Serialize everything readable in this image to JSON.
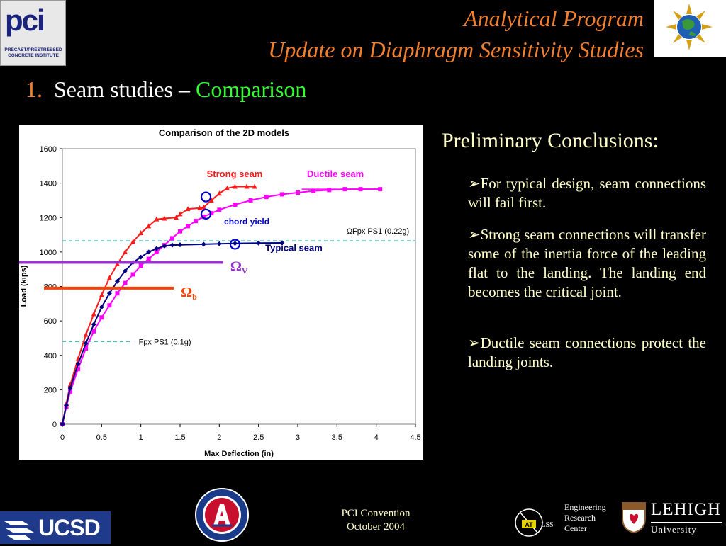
{
  "header": {
    "title_line1": "Analytical Program",
    "title_line2": "Update on Diaphragm Sensitivity Studies",
    "section_number": "1.",
    "section_title": "Seam studies –",
    "section_highlight": "Comparison"
  },
  "logos": {
    "pci_main": "pci",
    "pci_subtitle": "PRECAST/PRESTRESSED CONCRETE INSTITUTE",
    "ucsd": "UCSD",
    "atlss": "ATLSS",
    "erc_lines": [
      "Engineering",
      "Research",
      "Center"
    ],
    "lehigh_name": "LEHIGH",
    "lehigh_sub": "University"
  },
  "conclusions": {
    "title": "Preliminary Conclusions:",
    "bullets": [
      "For typical design, seam connections will fail first.",
      "Strong seam connections will transfer some of the inertia force of the leading flat to the landing. The landing end becomes the critical joint.",
      "Ductile seam connections protect the landing joints."
    ]
  },
  "footer": {
    "line1": "PCI Convention",
    "line2": "October 2004"
  },
  "chart_data": {
    "type": "line",
    "title": "Comparison of the 2D models",
    "xlabel": "Max Deflection (in)",
    "ylabel": "Load (kips)",
    "xlim": [
      0,
      4.5
    ],
    "ylim": [
      0,
      1600
    ],
    "xticks": [
      "0",
      "0.5",
      "1",
      "1.5",
      "2",
      "2.5",
      "3",
      "3.5",
      "4",
      "4.5"
    ],
    "yticks": [
      "0",
      "200",
      "400",
      "600",
      "800",
      "1000",
      "1200",
      "1400",
      "1600"
    ],
    "series": [
      {
        "name": "Strong seam",
        "color": "#ff1a1a",
        "points": [
          [
            0,
            0
          ],
          [
            0.05,
            120
          ],
          [
            0.1,
            230
          ],
          [
            0.2,
            380
          ],
          [
            0.3,
            520
          ],
          [
            0.4,
            640
          ],
          [
            0.5,
            750
          ],
          [
            0.6,
            850
          ],
          [
            0.7,
            930
          ],
          [
            0.8,
            1000
          ],
          [
            0.9,
            1060
          ],
          [
            1.0,
            1110
          ],
          [
            1.1,
            1150
          ],
          [
            1.2,
            1190
          ],
          [
            1.3,
            1195
          ],
          [
            1.45,
            1200
          ],
          [
            1.5,
            1220
          ],
          [
            1.6,
            1250
          ],
          [
            1.75,
            1255
          ],
          [
            1.8,
            1260
          ],
          [
            1.9,
            1300
          ],
          [
            2.0,
            1340
          ],
          [
            2.1,
            1370
          ],
          [
            2.2,
            1380
          ],
          [
            2.35,
            1380
          ],
          [
            2.45,
            1380
          ]
        ]
      },
      {
        "name": "Ductile seam",
        "color": "#ff00ff",
        "points": [
          [
            0,
            0
          ],
          [
            0.05,
            100
          ],
          [
            0.1,
            190
          ],
          [
            0.2,
            320
          ],
          [
            0.3,
            440
          ],
          [
            0.4,
            540
          ],
          [
            0.5,
            620
          ],
          [
            0.6,
            690
          ],
          [
            0.7,
            760
          ],
          [
            0.8,
            820
          ],
          [
            0.9,
            870
          ],
          [
            1.0,
            920
          ],
          [
            1.1,
            960
          ],
          [
            1.2,
            1000
          ],
          [
            1.3,
            1040
          ],
          [
            1.4,
            1080
          ],
          [
            1.5,
            1120
          ],
          [
            1.6,
            1150
          ],
          [
            1.7,
            1180
          ],
          [
            1.8,
            1205
          ],
          [
            1.9,
            1225
          ],
          [
            2.0,
            1245
          ],
          [
            2.2,
            1275
          ],
          [
            2.4,
            1300
          ],
          [
            2.6,
            1320
          ],
          [
            2.8,
            1335
          ],
          [
            3.0,
            1345
          ],
          [
            3.2,
            1355
          ],
          [
            3.4,
            1360
          ],
          [
            3.6,
            1365
          ],
          [
            3.8,
            1365
          ],
          [
            4.05,
            1365
          ]
        ]
      },
      {
        "name": "Typical seam",
        "color": "#000080",
        "points": [
          [
            0,
            0
          ],
          [
            0.05,
            110
          ],
          [
            0.1,
            210
          ],
          [
            0.2,
            350
          ],
          [
            0.3,
            470
          ],
          [
            0.4,
            580
          ],
          [
            0.5,
            680
          ],
          [
            0.6,
            760
          ],
          [
            0.7,
            830
          ],
          [
            0.8,
            890
          ],
          [
            0.9,
            940
          ],
          [
            1.0,
            970
          ],
          [
            1.1,
            1000
          ],
          [
            1.2,
            1020
          ],
          [
            1.3,
            1035
          ],
          [
            1.4,
            1040
          ],
          [
            1.5,
            1042
          ],
          [
            1.8,
            1045
          ],
          [
            2.0,
            1048
          ],
          [
            2.2,
            1050
          ],
          [
            2.5,
            1052
          ],
          [
            2.8,
            1053
          ]
        ]
      }
    ],
    "reference_lines": [
      {
        "label": "ΩFpx PS1 (0.22g)",
        "y": 1065,
        "x_start": 0,
        "x_end": 4.5,
        "color": "#40c0c0",
        "style": "dashed"
      },
      {
        "label": "Fpx PS1 (0.1g)",
        "y": 480,
        "x_start": 0,
        "x_end": 0.9,
        "color": "#40c0c0",
        "style": "dashed"
      }
    ],
    "level_markers": [
      {
        "label": "Ω",
        "sub": "V",
        "y": 940,
        "x_start": 0,
        "x_end": 2.05,
        "color": "#9933cc"
      },
      {
        "label": "Ω",
        "sub": "b",
        "y": 790,
        "x_start": 0,
        "x_end": 1.42,
        "color": "#ff4000"
      }
    ],
    "annotations": [
      {
        "text": "chord yield",
        "x": 2.35,
        "y": 1160,
        "color": "#0000cc"
      }
    ],
    "circles": [
      [
        1.83,
        1320
      ],
      [
        1.83,
        1220
      ],
      [
        2.2,
        1045
      ]
    ],
    "grid": false,
    "legend": "inline labels"
  }
}
